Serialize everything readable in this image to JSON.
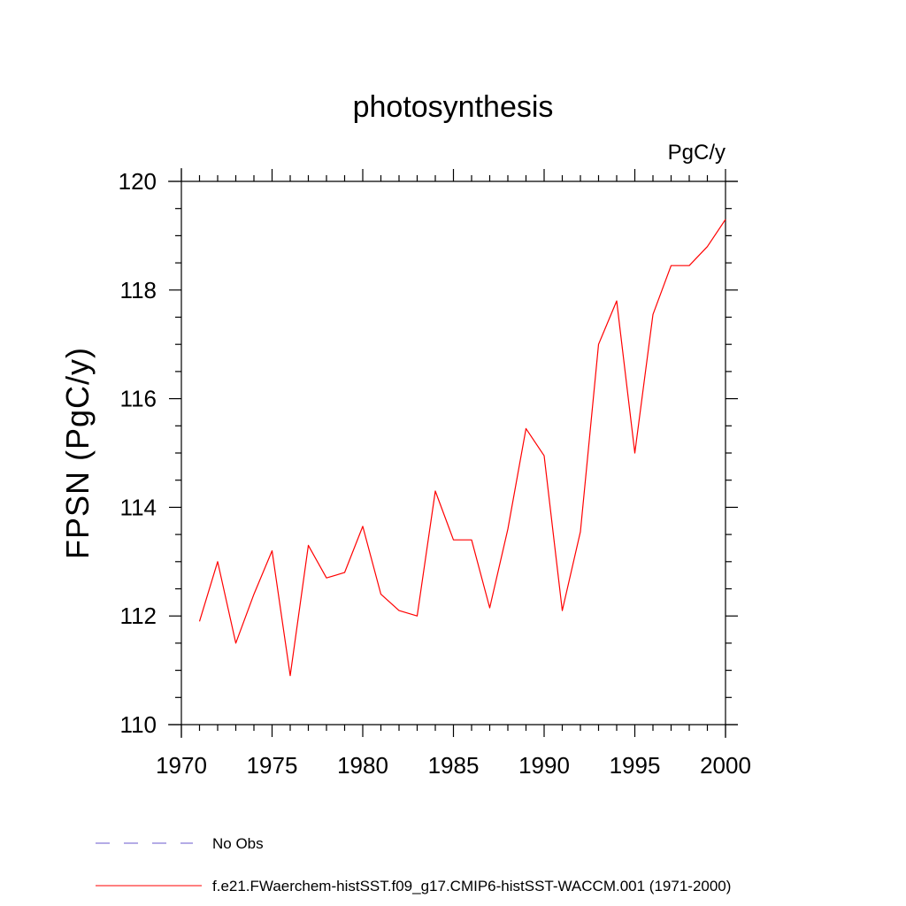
{
  "chart_data": {
    "type": "line",
    "title": "photosynthesis",
    "units": "PgC/y",
    "xlabel": "",
    "ylabel": "FPSN  (PgC/y)",
    "xlim": [
      1970,
      2000
    ],
    "ylim": [
      110,
      120
    ],
    "x_ticks": [
      1970,
      1975,
      1980,
      1985,
      1990,
      1995,
      2000
    ],
    "y_ticks": [
      110,
      112,
      114,
      116,
      118,
      120
    ],
    "x_minor_step": 1,
    "y_minor_step": 0.5,
    "grid": false,
    "legend_position": "bottom",
    "series": [
      {
        "name": "f.e21.FWaerchem-histSST.f09_g17.CMIP6-histSST-WACCM.001 (1971-2000)",
        "color": "#ff0000",
        "style": "solid",
        "x": [
          1971,
          1972,
          1973,
          1974,
          1975,
          1976,
          1977,
          1978,
          1979,
          1980,
          1981,
          1982,
          1983,
          1984,
          1985,
          1986,
          1987,
          1988,
          1989,
          1990,
          1991,
          1992,
          1993,
          1994,
          1995,
          1996,
          1997,
          1998,
          1999,
          2000
        ],
        "values": [
          111.9,
          113.0,
          111.5,
          112.4,
          113.2,
          110.9,
          113.3,
          112.7,
          112.8,
          113.65,
          112.4,
          112.1,
          112.0,
          114.3,
          113.4,
          113.4,
          112.15,
          113.6,
          115.45,
          114.95,
          112.1,
          113.55,
          117.0,
          117.8,
          115.0,
          117.55,
          118.45,
          118.45,
          118.8,
          119.3
        ]
      }
    ],
    "legend": [
      {
        "label": "No Obs",
        "color": "#6a5acd",
        "style": "dashed"
      },
      {
        "label": "f.e21.FWaerchem-histSST.f09_g17.CMIP6-histSST-WACCM.001 (1971-2000)",
        "color": "#ff0000",
        "style": "solid"
      }
    ]
  }
}
